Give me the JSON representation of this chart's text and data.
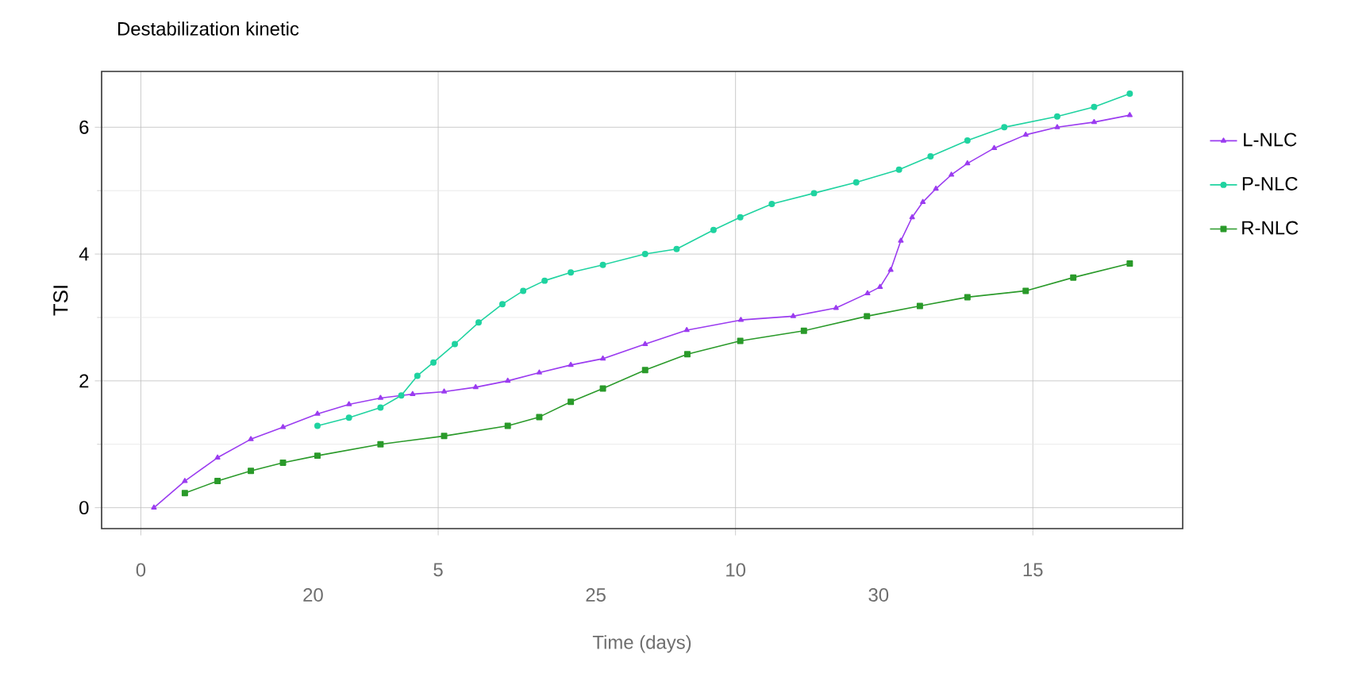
{
  "chart_data": {
    "type": "line",
    "title": "Destabilization kinetic",
    "xlabel": "Time (days)",
    "ylabel": "TSI",
    "xlim": [
      -0.66,
      17.52
    ],
    "ylim": [
      -0.33,
      6.88
    ],
    "xticks": [
      0,
      5,
      10,
      15
    ],
    "yticks": [
      0,
      2,
      4,
      6
    ],
    "x2lim": [
      16.26,
      35.38
    ],
    "x2ticks": [
      20,
      25,
      30
    ],
    "grid": true,
    "legend": "right",
    "line_style": "solid",
    "series": [
      {
        "name": "L-NLC",
        "color": "#9b3cf0",
        "marker": "triangle",
        "x": [
          0.22,
          0.74,
          1.29,
          1.85,
          2.39,
          2.97,
          3.5,
          4.03,
          4.57,
          5.1,
          5.63,
          6.17,
          6.7,
          7.23,
          7.77,
          8.48,
          9.18,
          10.09,
          10.97,
          11.69,
          12.22,
          12.43,
          12.61,
          12.78,
          12.97,
          13.15,
          13.37,
          13.63,
          13.9,
          14.35,
          14.88,
          15.41,
          16.03,
          16.63
        ],
        "values": [
          0,
          0.42,
          0.79,
          1.08,
          1.27,
          1.48,
          1.63,
          1.73,
          1.79,
          1.83,
          1.9,
          2.0,
          2.13,
          2.25,
          2.35,
          2.58,
          2.8,
          2.96,
          3.02,
          3.15,
          3.38,
          3.48,
          3.75,
          4.21,
          4.58,
          4.82,
          5.03,
          5.25,
          5.43,
          5.67,
          5.88,
          6.0,
          6.08,
          6.19
        ]
      },
      {
        "name": "P-NLC",
        "color": "#1fd3a0",
        "marker": "circle",
        "x": [
          2.97,
          3.5,
          4.03,
          4.38,
          4.65,
          4.92,
          5.28,
          5.68,
          6.08,
          6.43,
          6.79,
          7.23,
          7.77,
          8.48,
          9.01,
          9.63,
          10.08,
          10.61,
          11.32,
          12.03,
          12.75,
          13.28,
          13.9,
          14.52,
          15.41,
          16.03,
          16.63
        ],
        "values": [
          1.29,
          1.42,
          1.58,
          1.77,
          2.08,
          2.29,
          2.58,
          2.92,
          3.21,
          3.42,
          3.58,
          3.71,
          3.83,
          4.0,
          4.08,
          4.38,
          4.58,
          4.79,
          4.96,
          5.13,
          5.33,
          5.54,
          5.79,
          6.0,
          6.17,
          6.32,
          6.53
        ]
      },
      {
        "name": "R-NLC",
        "color": "#2a9a2a",
        "marker": "square",
        "x": [
          0.74,
          1.29,
          1.85,
          2.39,
          2.97,
          4.03,
          5.1,
          6.17,
          6.7,
          7.23,
          7.77,
          8.48,
          9.19,
          10.08,
          11.15,
          12.21,
          13.1,
          13.9,
          14.88,
          15.68,
          16.63
        ],
        "values": [
          0.23,
          0.42,
          0.58,
          0.71,
          0.82,
          1.0,
          1.13,
          1.29,
          1.43,
          1.67,
          1.88,
          2.17,
          2.42,
          2.63,
          2.79,
          3.02,
          3.18,
          3.32,
          3.42,
          3.63,
          3.85
        ]
      }
    ]
  }
}
